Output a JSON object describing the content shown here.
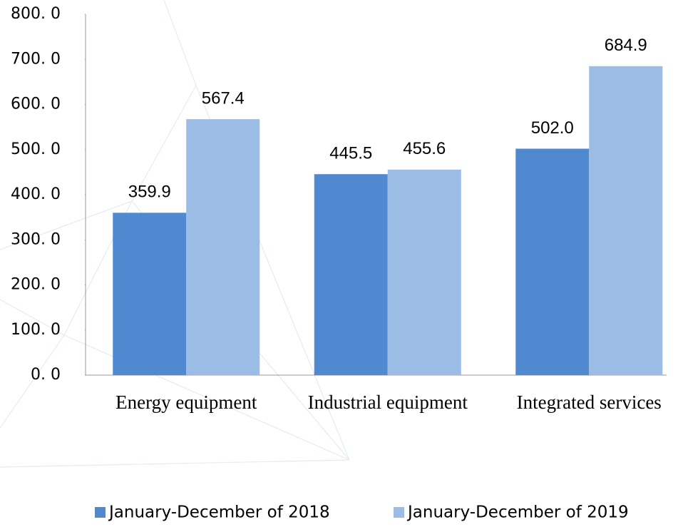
{
  "chart_data": {
    "type": "bar",
    "categories": [
      "Energy equipment",
      "Industrial equipment",
      "Integrated services"
    ],
    "series": [
      {
        "name": "January-December of 2018",
        "color": "#5189d0",
        "values": [
          359.9,
          445.5,
          502.0
        ],
        "value_labels": [
          "359.9",
          "445.5",
          "502.0"
        ]
      },
      {
        "name": "January-December of 2019",
        "color": "#9bbce4",
        "values": [
          567.4,
          455.6,
          684.9
        ],
        "value_labels": [
          "567.4",
          "455.6",
          "684.9"
        ]
      }
    ],
    "ylim": [
      0,
      800
    ],
    "yticks": [
      {
        "value": 0,
        "label": "0. 0"
      },
      {
        "value": 100,
        "label": "100. 0"
      },
      {
        "value": 200,
        "label": "200. 0"
      },
      {
        "value": 300,
        "label": "300. 0"
      },
      {
        "value": 400,
        "label": "400. 0"
      },
      {
        "value": 500,
        "label": "500. 0"
      },
      {
        "value": 600,
        "label": "600. 0"
      },
      {
        "value": 700,
        "label": "700. 0"
      },
      {
        "value": 800,
        "label": "800. 0"
      }
    ],
    "grid": false,
    "legend": "bottom"
  }
}
